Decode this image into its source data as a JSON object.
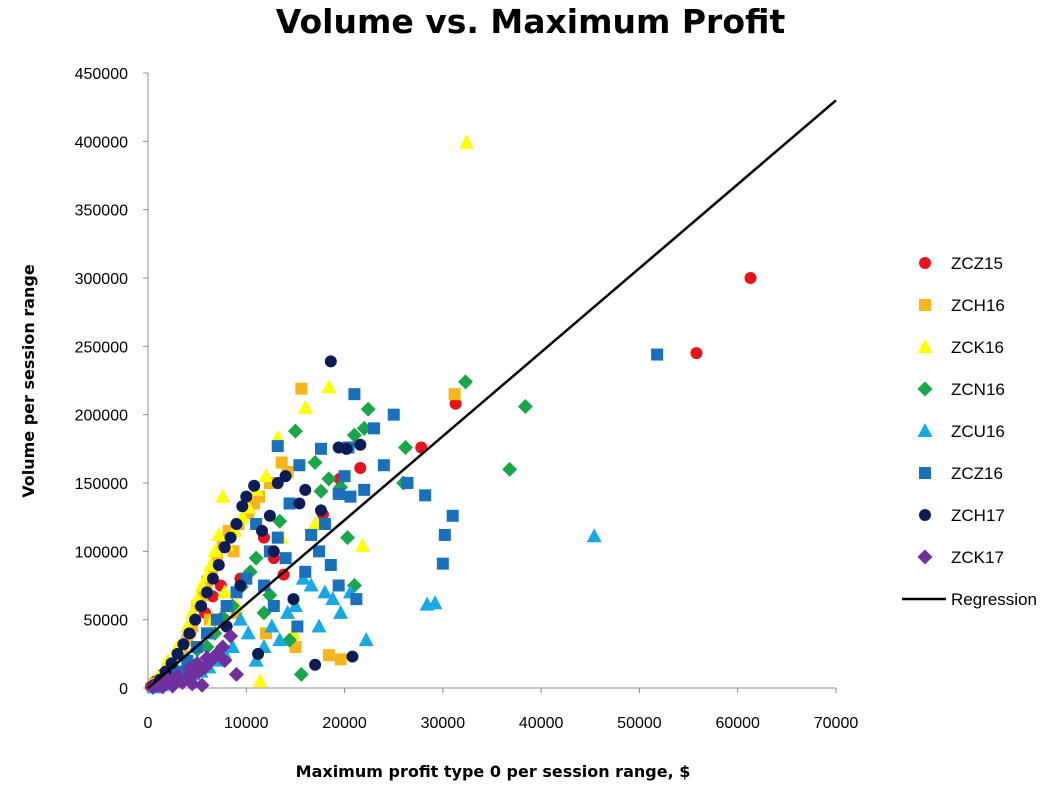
{
  "chart_data": {
    "type": "scatter",
    "title": "Volume vs. Maximum Profit",
    "xlabel": "Maximum profit type 0 per session range, $",
    "ylabel": "Volume per session range",
    "xlim": [
      0,
      70000
    ],
    "ylim": [
      0,
      450000
    ],
    "x_ticks": [
      "0",
      "10000",
      "20000",
      "30000",
      "40000",
      "50000",
      "60000",
      "70000"
    ],
    "y_ticks": [
      "0",
      "50000",
      "100000",
      "150000",
      "200000",
      "250000",
      "300000",
      "350000",
      "400000",
      "450000"
    ],
    "grid": false,
    "legend_position": "right",
    "series": [
      {
        "name": "ZCZ15",
        "marker": "circle",
        "color": "#e8141b",
        "x": [
          61300,
          55800,
          31300,
          27800,
          21600,
          19500,
          17800,
          13800,
          12800,
          11800,
          9400,
          7400,
          6600,
          5800,
          4300,
          3100,
          2200,
          1500,
          800,
          300
        ],
        "y": [
          300000,
          245000,
          208000,
          176000,
          161000,
          153000,
          127000,
          83000,
          95000,
          110000,
          80000,
          75000,
          67000,
          55000,
          40000,
          28000,
          18000,
          10000,
          5000,
          1000
        ]
      },
      {
        "name": "ZCH16",
        "marker": "square",
        "color": "#f6b51a",
        "x": [
          15600,
          31200,
          13600,
          12400,
          11300,
          10200,
          9200,
          8200,
          7600,
          7000,
          6500,
          6000,
          5500,
          5000,
          4500,
          4000,
          18400,
          19600,
          15000,
          12000,
          9000,
          6300,
          3500,
          2500,
          1500,
          700,
          8700,
          10800,
          13000,
          14200
        ],
        "y": [
          219000,
          215000,
          165000,
          150000,
          140000,
          128000,
          120000,
          115000,
          105000,
          95000,
          85000,
          78000,
          68000,
          60000,
          45000,
          35000,
          24000,
          21000,
          30000,
          40000,
          55000,
          50000,
          25000,
          15000,
          8000,
          3000,
          100000,
          135000,
          150000,
          158000
        ]
      },
      {
        "name": "ZCK16",
        "marker": "triangle",
        "color": "#ffff00",
        "x": [
          32400,
          18400,
          16000,
          13200,
          12000,
          11000,
          10200,
          9600,
          8800,
          8000,
          7600,
          7200,
          6800,
          6400,
          6000,
          5500,
          5000,
          4500,
          4000,
          3000,
          2000,
          1000,
          14800,
          11400,
          9000,
          7800,
          6600,
          21800,
          17000,
          13500
        ],
        "y": [
          399000,
          220000,
          205000,
          183000,
          155000,
          145000,
          132000,
          125000,
          115000,
          105000,
          140000,
          112000,
          100000,
          90000,
          82000,
          75000,
          65000,
          55000,
          45000,
          30000,
          20000,
          8000,
          40000,
          5000,
          60000,
          70000,
          50000,
          104000,
          120000,
          110000
        ]
      },
      {
        "name": "ZCN16",
        "marker": "diamond",
        "color": "#1aa64a",
        "x": [
          32300,
          38400,
          36800,
          26200,
          26000,
          22400,
          22000,
          21000,
          20300,
          18400,
          17600,
          15000,
          14400,
          13400,
          12400,
          11800,
          11000,
          10400,
          9500,
          8600,
          7600,
          6800,
          6000,
          5000,
          4000,
          3000,
          2000,
          1000,
          19600,
          21000,
          15600,
          17000
        ],
        "y": [
          224000,
          206000,
          160000,
          176000,
          150000,
          204000,
          190000,
          185000,
          110000,
          153000,
          144000,
          188000,
          35000,
          122000,
          68000,
          55000,
          95000,
          85000,
          74000,
          60000,
          52000,
          40000,
          30000,
          28000,
          20000,
          12000,
          6000,
          2000,
          147000,
          75000,
          10000,
          165000
        ]
      },
      {
        "name": "ZCU16",
        "marker": "triangle",
        "color": "#18a8e4",
        "x": [
          45400,
          29200,
          28400,
          22200,
          20600,
          19600,
          18800,
          18000,
          17400,
          16600,
          15800,
          15000,
          14200,
          13400,
          12600,
          11800,
          11000,
          10200,
          9400,
          8600,
          7800,
          7000,
          6200,
          5400,
          4600,
          3800,
          3000,
          2200,
          1400,
          600
        ],
        "y": [
          111000,
          62000,
          61000,
          35000,
          70000,
          55000,
          65000,
          70000,
          45000,
          75000,
          80000,
          60000,
          55000,
          35000,
          45000,
          30000,
          20000,
          40000,
          50000,
          30000,
          25000,
          20000,
          15000,
          12000,
          10000,
          8000,
          6000,
          4000,
          2000,
          500
        ]
      },
      {
        "name": "ZCZ16",
        "marker": "square",
        "color": "#1a70ba",
        "x": [
          51800,
          31000,
          30200,
          30000,
          28200,
          26400,
          25000,
          24000,
          23000,
          22000,
          21000,
          20400,
          20000,
          19400,
          18600,
          17600,
          16600,
          15400,
          14400,
          13200,
          12400,
          11800,
          11000,
          10000,
          9000,
          8000,
          7000,
          6000,
          5000,
          4000,
          3000,
          2000,
          1000,
          21200,
          17400,
          16000,
          14000,
          12800,
          18000,
          19400,
          20600,
          15200,
          13200
        ],
        "y": [
          244000,
          126000,
          112000,
          91000,
          141000,
          150000,
          200000,
          163000,
          190000,
          145000,
          215000,
          176000,
          155000,
          142000,
          90000,
          175000,
          112000,
          163000,
          135000,
          177000,
          100000,
          75000,
          120000,
          80000,
          70000,
          60000,
          50000,
          40000,
          30000,
          20000,
          12000,
          6000,
          2000,
          65000,
          100000,
          85000,
          95000,
          60000,
          120000,
          75000,
          140000,
          45000,
          110000
        ]
      },
      {
        "name": "ZCH17",
        "marker": "circle",
        "color": "#0c1d55",
        "x": [
          18600,
          21600,
          20200,
          19400,
          17600,
          16000,
          15400,
          14000,
          13200,
          12400,
          11600,
          10800,
          10000,
          9600,
          9000,
          8400,
          7800,
          7200,
          6600,
          6000,
          5400,
          4800,
          4200,
          3600,
          3000,
          2400,
          1800,
          1200,
          600,
          20800,
          17000,
          14800,
          11200,
          12800,
          9400,
          8000
        ],
        "y": [
          239000,
          178000,
          175000,
          176000,
          130000,
          145000,
          135000,
          155000,
          150000,
          126000,
          115000,
          148000,
          140000,
          133000,
          120000,
          110000,
          103000,
          90000,
          80000,
          70000,
          60000,
          50000,
          40000,
          32000,
          25000,
          18000,
          12000,
          6000,
          2000,
          23000,
          17000,
          65000,
          25000,
          100000,
          75000,
          45000
        ]
      },
      {
        "name": "ZCK17",
        "marker": "diamond",
        "color": "#7030a0",
        "x": [
          8400,
          7600,
          7000,
          6400,
          5800,
          5200,
          4600,
          4000,
          3400,
          2800,
          2200,
          1600,
          1000,
          500,
          6000,
          5000,
          4200,
          3000,
          2000,
          7800,
          9000,
          5500,
          4500,
          3500,
          2500,
          1500
        ],
        "y": [
          38000,
          30000,
          25000,
          20000,
          15000,
          12000,
          10000,
          8000,
          6000,
          5000,
          4000,
          3000,
          2000,
          500,
          22000,
          18000,
          14000,
          9000,
          6000,
          20000,
          10000,
          2000,
          3000,
          4000,
          1500,
          800
        ]
      }
    ],
    "regression": {
      "name": "Regression",
      "color": "#000000",
      "x": [
        0,
        70000
      ],
      "y": [
        0,
        430000
      ]
    }
  }
}
